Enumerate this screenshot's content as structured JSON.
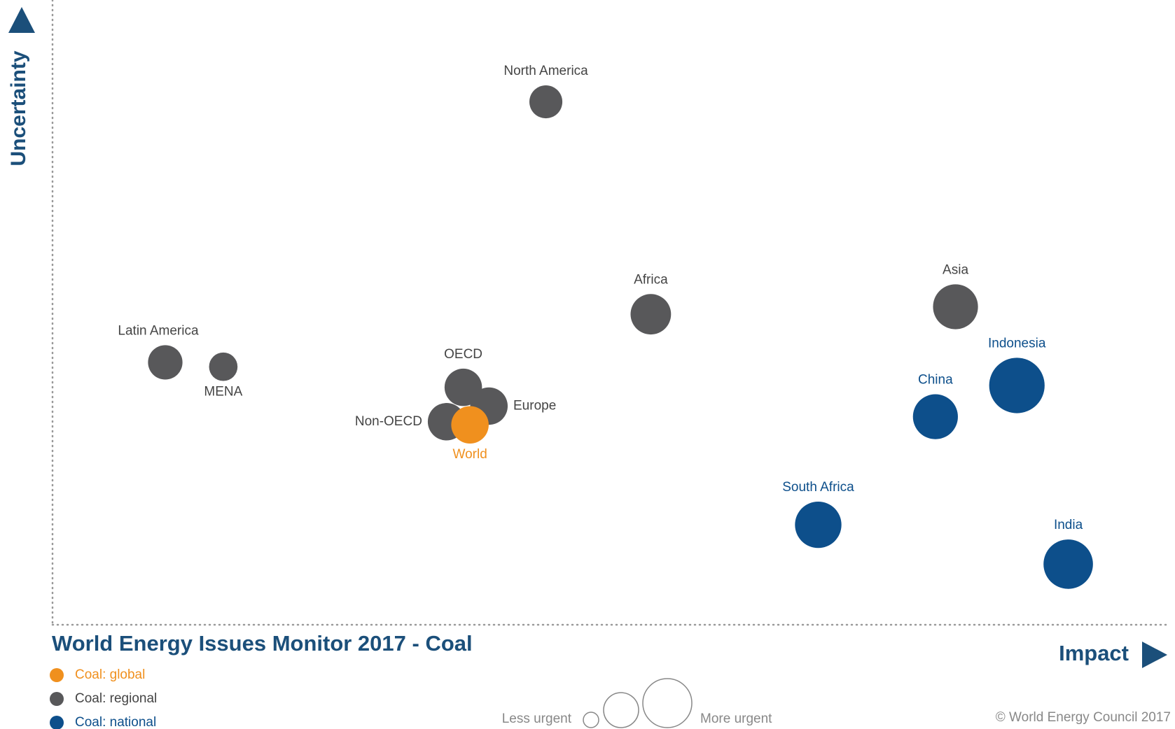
{
  "chart_data": {
    "type": "bubble",
    "title": "World Energy Issues Monitor 2017 - Coal",
    "x_label": "Impact",
    "y_label": "Uncertainty",
    "size_legend": [
      "Less urgent",
      "More urgent"
    ],
    "source": "© World Energy Council 2017",
    "xlim": [
      0,
      10
    ],
    "ylim": [
      0,
      10
    ],
    "series": [
      {
        "name": "Coal: global",
        "color": "#f0901e",
        "labels": [
          "World"
        ],
        "x": [
          3.74
        ],
        "y": [
          3.2
        ],
        "size": [
          25
        ]
      },
      {
        "name": "Coal: regional",
        "color": "#58585a",
        "labels": [
          "North America",
          "Africa",
          "Asia",
          "Latin America",
          "MENA",
          "OECD",
          "Europe",
          "Non-OECD"
        ],
        "x": [
          4.42,
          5.36,
          8.09,
          1.01,
          1.53,
          3.68,
          3.91,
          3.53
        ],
        "y": [
          8.37,
          4.97,
          5.09,
          4.2,
          4.13,
          3.8,
          3.5,
          3.25
        ],
        "size": [
          22,
          27,
          30,
          23,
          19,
          25,
          25,
          25
        ]
      },
      {
        "name": "Coal: national",
        "color": "#0d4f8b",
        "labels": [
          "Indonesia",
          "China",
          "South Africa",
          "India"
        ],
        "x": [
          8.64,
          7.91,
          6.86,
          9.1
        ],
        "y": [
          3.83,
          3.33,
          1.6,
          0.97
        ],
        "size": [
          37,
          30,
          31,
          33
        ]
      }
    ]
  }
}
